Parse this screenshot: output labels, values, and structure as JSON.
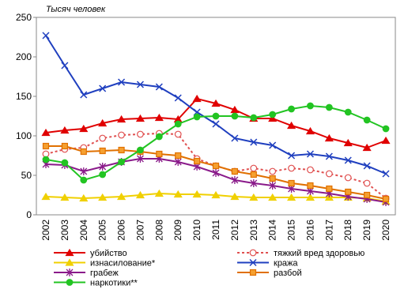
{
  "chart_data": {
    "type": "line",
    "y_unit_label": "Тысяч человек",
    "categories": [
      "2002",
      "2003",
      "2004",
      "2005",
      "2006",
      "2007",
      "2008",
      "2009",
      "2010",
      "2011",
      "2012",
      "2013",
      "2014",
      "2015",
      "2016",
      "2017",
      "2018",
      "2019",
      "2020"
    ],
    "ylim": [
      0,
      250
    ],
    "yticks": [
      0,
      50,
      100,
      150,
      200,
      250
    ],
    "grid": false,
    "series": [
      {
        "name": "убийство",
        "color": "#e00000",
        "marker": "triangle",
        "marker_fill": "#e00000",
        "dash": false,
        "values": [
          104,
          107,
          109,
          116,
          121,
          122,
          123,
          121,
          147,
          141,
          133,
          122,
          122,
          113,
          106,
          97,
          91,
          85,
          94
        ]
      },
      {
        "name": "тяжкий вред здоровью",
        "color": "#e05050",
        "marker": "circle",
        "marker_fill": "#ffffff",
        "dash": true,
        "values": [
          77,
          83,
          85,
          97,
          101,
          102,
          103,
          102,
          71,
          62,
          55,
          59,
          55,
          59,
          57,
          52,
          47,
          40,
          21
        ]
      },
      {
        "name": "изнасилование*",
        "color": "#f0d000",
        "marker": "triangle",
        "marker_fill": "#f0d000",
        "dash": false,
        "values": [
          23,
          22,
          21,
          22,
          23,
          25,
          27,
          26,
          26,
          25,
          23,
          22,
          22,
          22,
          22,
          22,
          22,
          21,
          17
        ]
      },
      {
        "name": "кража",
        "color": "#1f3fbf",
        "marker": "x",
        "marker_fill": "#1f3fbf",
        "dash": false,
        "values": [
          227,
          189,
          152,
          160,
          168,
          165,
          162,
          148,
          130,
          115,
          97,
          92,
          88,
          75,
          77,
          74,
          69,
          62,
          52
        ]
      },
      {
        "name": "грабеж",
        "color": "#8a1a8a",
        "marker": "star",
        "marker_fill": "#8a1a8a",
        "dash": false,
        "values": [
          64,
          63,
          55,
          61,
          67,
          71,
          71,
          67,
          61,
          53,
          44,
          40,
          37,
          33,
          30,
          27,
          23,
          20,
          16
        ]
      },
      {
        "name": "разбой",
        "color": "#e07000",
        "marker": "square",
        "marker_fill": "#f5a030",
        "dash": false,
        "values": [
          87,
          87,
          80,
          81,
          82,
          80,
          77,
          75,
          68,
          62,
          55,
          51,
          46,
          40,
          37,
          33,
          29,
          25,
          20
        ]
      },
      {
        "name": "наркотики**",
        "color": "#22c422",
        "marker": "circle",
        "marker_fill": "#22c422",
        "dash": false,
        "values": [
          70,
          66,
          44,
          51,
          67,
          82,
          99,
          115,
          124,
          125,
          125,
          123,
          127,
          134,
          138,
          136,
          130,
          120,
          109
        ]
      }
    ]
  }
}
